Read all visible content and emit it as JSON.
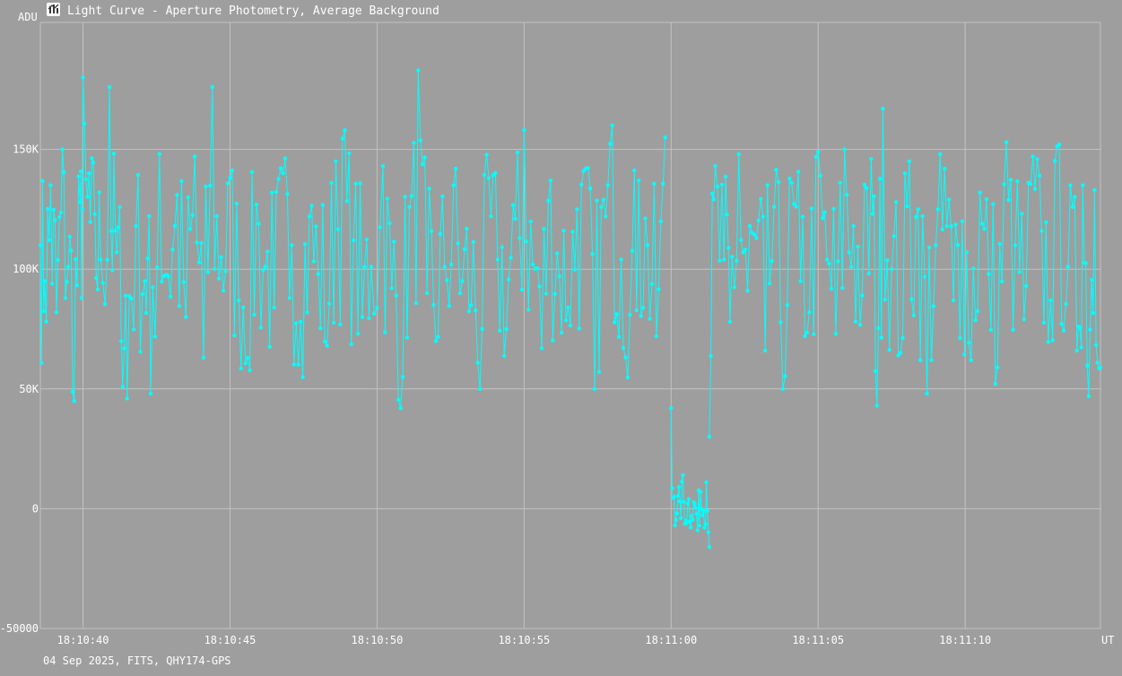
{
  "window": {
    "title": "Light Curve - Aperture Photometry, Average Background",
    "icon": "light-curve-app-icon",
    "footer": "04 Sep 2025, FITS, QHY174-GPS"
  },
  "colors": {
    "background": "#9e9e9e",
    "grid": "#c2c2c2",
    "series": "#00ffff",
    "text": "#ffffff"
  },
  "chart_data": {
    "type": "line",
    "title": "Light Curve - Aperture Photometry, Average Background",
    "xlabel": "UT",
    "ylabel": "ADU",
    "grid": true,
    "x_ticks": [
      "18:10:40",
      "18:10:45",
      "18:10:50",
      "18:10:55",
      "18:11:00",
      "18:11:05",
      "18:11:10"
    ],
    "y_ticks": [
      "-50000",
      "0",
      "50K",
      "100K",
      "150K"
    ],
    "x_range_seconds_after_18_10_40": [
      -1.45,
      34.6
    ],
    "ylim": [
      -50000,
      203000
    ],
    "series": [
      {
        "style": "line-with-markers",
        "color": "#00ffff",
        "segments": [
          {
            "x_range": [
              -1.45,
              20.0
            ],
            "points": [
              [
                -1.45,
                110000
              ],
              [
                -1.3,
                95000
              ],
              [
                -1.1,
                135000
              ],
              [
                -0.9,
                82000
              ],
              [
                -0.7,
                150000
              ],
              [
                -0.5,
                101000
              ],
              [
                -0.3,
                45000
              ],
              [
                -0.1,
                128000
              ],
              [
                0.0,
                180000
              ],
              [
                0.2,
                140000
              ],
              [
                0.4,
                123000
              ],
              [
                0.6,
                104000
              ],
              [
                0.9,
                176000
              ],
              [
                1.1,
                116000
              ],
              [
                1.3,
                70000
              ],
              [
                1.5,
                46000
              ],
              [
                1.8,
                118000
              ],
              [
                2.1,
                95000
              ],
              [
                2.3,
                48000
              ],
              [
                2.6,
                148000
              ],
              [
                2.9,
                97000
              ],
              [
                3.2,
                131000
              ],
              [
                3.5,
                80000
              ],
              [
                3.8,
                147000
              ],
              [
                4.1,
                63000
              ],
              [
                4.4,
                176000
              ],
              [
                4.7,
                105000
              ],
              [
                5.0,
                138000
              ],
              [
                5.3,
                87000
              ],
              [
                5.6,
                63000
              ],
              [
                5.9,
                127000
              ],
              [
                6.2,
                101000
              ],
              [
                6.5,
                84000
              ],
              [
                6.8,
                140000
              ],
              [
                7.1,
                110000
              ],
              [
                7.4,
                78000
              ],
              [
                7.7,
                122000
              ],
              [
                8.0,
                98000
              ],
              [
                8.3,
                68000
              ],
              [
                8.6,
                145000
              ],
              [
                8.9,
                158000
              ],
              [
                9.2,
                112000
              ],
              [
                9.5,
                80000
              ],
              [
                9.8,
                101000
              ],
              [
                10.2,
                143000
              ],
              [
                10.5,
                92000
              ],
              [
                10.8,
                42000
              ],
              [
                11.1,
                126000
              ],
              [
                11.4,
                183000
              ],
              [
                11.7,
                90000
              ],
              [
                12.0,
                70000
              ],
              [
                12.3,
                101000
              ],
              [
                12.6,
                135000
              ],
              [
                12.9,
                95000
              ],
              [
                13.2,
                85000
              ],
              [
                13.5,
                50000
              ],
              [
                13.8,
                138000
              ],
              [
                14.1,
                104000
              ],
              [
                14.4,
                75000
              ],
              [
                14.7,
                121000
              ],
              [
                15.0,
                158000
              ],
              [
                15.3,
                102000
              ],
              [
                15.6,
                67000
              ],
              [
                15.9,
                137000
              ],
              [
                16.2,
                97000
              ],
              [
                16.5,
                84000
              ],
              [
                16.8,
                125000
              ],
              [
                17.1,
                142000
              ],
              [
                17.4,
                50000
              ],
              [
                17.7,
                129000
              ],
              [
                18.0,
                160000
              ],
              [
                18.3,
                104000
              ],
              [
                18.6,
                81000
              ],
              [
                18.9,
                137000
              ],
              [
                19.2,
                110000
              ],
              [
                19.5,
                72000
              ],
              [
                19.8,
                155000
              ]
            ]
          },
          {
            "x_range": [
              20.0,
              21.3
            ],
            "points": [
              [
                20.0,
                42000
              ],
              [
                20.1,
                5000
              ],
              [
                20.2,
                -2000
              ],
              [
                20.3,
                3000
              ],
              [
                20.4,
                14000
              ],
              [
                20.5,
                -5000
              ],
              [
                20.6,
                4000
              ],
              [
                20.7,
                -3000
              ],
              [
                20.8,
                2000
              ],
              [
                20.9,
                -9000
              ],
              [
                21.0,
                7000
              ],
              [
                21.1,
                -1000
              ],
              [
                21.2,
                11000
              ],
              [
                21.3,
                -16000
              ]
            ]
          },
          {
            "x_range": [
              21.3,
              34.6
            ],
            "points": [
              [
                21.3,
                30000
              ],
              [
                21.5,
                143000
              ],
              [
                21.8,
                104000
              ],
              [
                22.0,
                78000
              ],
              [
                22.3,
                148000
              ],
              [
                22.6,
                91000
              ],
              [
                22.9,
                113000
              ],
              [
                23.2,
                66000
              ],
              [
                23.5,
                126000
              ],
              [
                23.8,
                50000
              ],
              [
                24.1,
                136000
              ],
              [
                24.4,
                95000
              ],
              [
                24.7,
                82000
              ],
              [
                25.0,
                149000
              ],
              [
                25.3,
                104000
              ],
              [
                25.6,
                73000
              ],
              [
                25.9,
                150000
              ],
              [
                26.2,
                118000
              ],
              [
                26.5,
                89000
              ],
              [
                26.8,
                146000
              ],
              [
                27.0,
                43000
              ],
              [
                27.2,
                167000
              ],
              [
                27.5,
                100000
              ],
              [
                27.8,
                65000
              ],
              [
                28.1,
                145000
              ],
              [
                28.4,
                125000
              ],
              [
                28.7,
                48000
              ],
              [
                29.0,
                110000
              ],
              [
                29.3,
                142000
              ],
              [
                29.6,
                87000
              ],
              [
                29.9,
                120000
              ],
              [
                30.2,
                62000
              ],
              [
                30.5,
                132000
              ],
              [
                30.8,
                98000
              ],
              [
                31.1,
                59000
              ],
              [
                31.4,
                153000
              ],
              [
                31.7,
                110000
              ],
              [
                32.0,
                79000
              ],
              [
                32.3,
                147000
              ],
              [
                32.6,
                116000
              ],
              [
                32.9,
                87000
              ],
              [
                33.2,
                152000
              ],
              [
                33.5,
                101000
              ],
              [
                33.8,
                66000
              ],
              [
                34.0,
                135000
              ],
              [
                34.2,
                47000
              ],
              [
                34.4,
                133000
              ],
              [
                34.6,
                59000
              ]
            ]
          }
        ]
      }
    ]
  }
}
